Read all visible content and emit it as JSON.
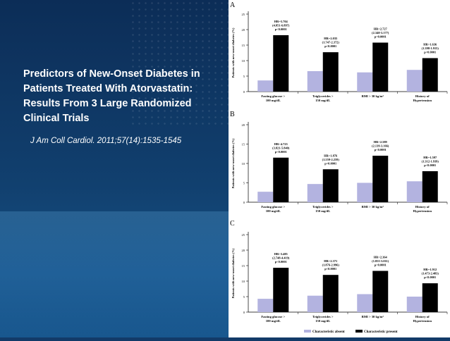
{
  "slide": {
    "title": "Predictors of New-Onset Diabetes in Patients Treated With Atorvastatin:  Results From 3 Large Randomized Clinical Trials",
    "citation": "J Am Coll Cardiol. 2011;57(14):1535-1545"
  },
  "colors": {
    "absent": "#b3b3e0",
    "present": "#000000"
  },
  "chart_data": [
    {
      "type": "bar",
      "panel": "A",
      "ylabel": "Patients with new-onset diabetes (%)",
      "ylim": [
        0,
        25
      ],
      "yticks": [
        0,
        5,
        10,
        15,
        20,
        25
      ],
      "categories": [
        "Fasting glucose >\n100 mg/dL",
        "Triglycerides >\n150 mg/dL",
        "BMI > 30 kg/m²",
        "History of\nHypertension"
      ],
      "series": [
        {
          "name": "Characteristic absent",
          "values": [
            3.6,
            6.6,
            6.2,
            7.0
          ]
        },
        {
          "name": "Characteristic present",
          "values": [
            18.2,
            12.7,
            15.8,
            10.8
          ]
        }
      ],
      "annotations": [
        "HR=5.704\n(4.851-6.897)\np<0.0001",
        "HR=2.035\n(1.747-2.372)\np<0.0001",
        "HR=2.727\n(2.340-3.177)\np<0.0001",
        "HR=1.636\n(1.398-1.915)\np<0.0001"
      ]
    },
    {
      "type": "bar",
      "panel": "B",
      "ylabel": "Patients with new-onset diabetes (%)",
      "ylim": [
        0,
        20
      ],
      "yticks": [
        0,
        5,
        10,
        15,
        20
      ],
      "categories": [
        "Fasting glucose >\n100 mg/dL",
        "Triglycerides >\n150 mg/dL",
        "BMI > 30 kg/m²",
        "History of\nHypertension"
      ],
      "series": [
        {
          "name": "Characteristic absent",
          "values": [
            2.7,
            4.7,
            5.0,
            5.4
          ]
        },
        {
          "name": "Characteristic present",
          "values": [
            11.5,
            8.5,
            12.0,
            8.0
          ]
        }
      ],
      "annotations": [
        "HR=4.723\n(3.821-5.840)\np<0.0001",
        "HR=1.876\n(1.559-2.259)\np<0.0001",
        "HR=2.589\n(2.139-3.166)\np<0.0001",
        "HR=1.597\n(1.312-1.939)\np<0.0001"
      ]
    },
    {
      "type": "bar",
      "panel": "C",
      "ylabel": "Patients with new-onset diabetes (%)",
      "ylim": [
        0,
        25
      ],
      "yticks": [
        0,
        5,
        10,
        15,
        20,
        25
      ],
      "categories": [
        "Fasting glucose >\n100 mg/dL",
        "Triglycerides >\n150 mg/dL",
        "BMI > 30 kg/m²",
        "History of\nHypertension"
      ],
      "series": [
        {
          "name": "Characteristic absent",
          "values": [
            4.3,
            5.3,
            5.8,
            5.0
          ]
        },
        {
          "name": "Characteristic present",
          "values": [
            14.3,
            12.0,
            13.3,
            9.3
          ]
        }
      ],
      "annotations": [
        "HR=3.485\n(2.748-4.419)\np<0.0001",
        "HR=2.371\n(1.876-2.996)\np<0.0001",
        "HR=2.364\n(1.855-3.011)\np<0.0001",
        "HR=1.912\n(1.473-2.483)\np<0.0001"
      ]
    }
  ],
  "legend": {
    "absent": "Characteristic absent",
    "present": "Characteristic present"
  }
}
